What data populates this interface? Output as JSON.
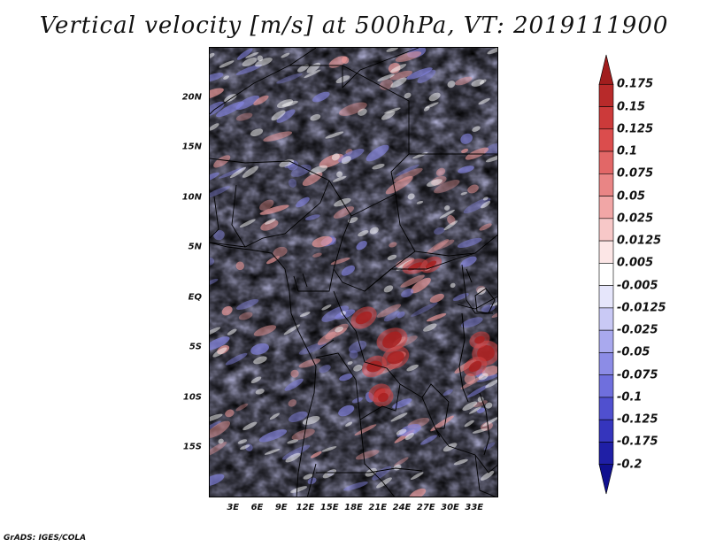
{
  "title": "Vertical velocity [m/s] at 500hPa, VT: 2019111900",
  "footer": "GrADS: IGES/COLA",
  "map": {
    "region": "Central Africa",
    "lat_range": [
      -20,
      25
    ],
    "lon_range": [
      0,
      36
    ],
    "lat_ticks": [
      "20N",
      "15N",
      "10N",
      "5N",
      "EQ",
      "5S",
      "10S",
      "15S"
    ],
    "lon_ticks": [
      "3E",
      "6E",
      "9E",
      "12E",
      "15E",
      "18E",
      "21E",
      "24E",
      "27E",
      "30E",
      "33E"
    ]
  },
  "colorbar": {
    "labels": [
      "0.175",
      "0.15",
      "0.125",
      "0.1",
      "0.075",
      "0.05",
      "0.025",
      "0.0125",
      "0.005",
      "-0.005",
      "-0.0125",
      "-0.025",
      "-0.05",
      "-0.075",
      "-0.1",
      "-0.125",
      "-0.175",
      "-0.2"
    ],
    "colors": [
      "#a11d1d",
      "#b82a2a",
      "#cc3a3a",
      "#db4d4d",
      "#e26767",
      "#e98585",
      "#f1a6a6",
      "#f7c8c8",
      "#fce6e6",
      "#ffffff",
      "#e6e6fb",
      "#c9c9f5",
      "#a9a9ee",
      "#8c8ce6",
      "#6f6fdd",
      "#5050cf",
      "#3535bd",
      "#1f1fa6",
      "#10108f"
    ]
  }
}
